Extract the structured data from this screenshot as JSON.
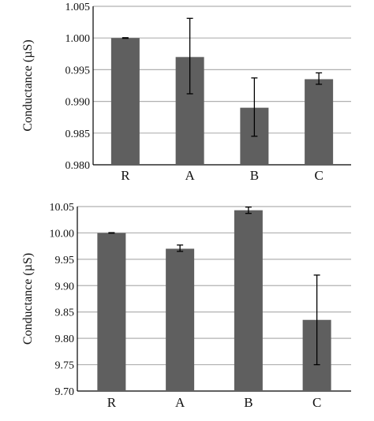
{
  "chart_data": [
    {
      "type": "bar",
      "ylabel": "Conductance (µS)",
      "xlabel": "",
      "categories": [
        "R",
        "A",
        "B",
        "C"
      ],
      "series": [
        {
          "values": [
            1.0,
            0.997,
            0.989,
            0.9935
          ]
        }
      ],
      "error_bars": [
        [
          0.99995,
          1.00005
        ],
        [
          0.9912,
          1.0031
        ],
        [
          0.9845,
          0.9937
        ],
        [
          0.9927,
          0.9945
        ]
      ],
      "ylim": [
        0.98,
        1.005
      ],
      "yticks": [
        "0.980",
        "0.985",
        "0.990",
        "0.995",
        "1.000",
        "1.005"
      ],
      "grid": true,
      "bar_color": "#5f5f5f",
      "grid_color": "#b0b0b0"
    },
    {
      "type": "bar",
      "ylabel": "Conductance (µS)",
      "xlabel": "",
      "categories": [
        "R",
        "A",
        "B",
        "C"
      ],
      "series": [
        {
          "values": [
            10.0,
            9.97,
            10.043,
            9.835
          ]
        }
      ],
      "error_bars": [
        [
          9.9995,
          10.0005
        ],
        [
          9.965,
          9.977
        ],
        [
          10.037,
          10.049
        ],
        [
          9.75,
          9.92
        ]
      ],
      "ylim": [
        9.7,
        10.05
      ],
      "yticks": [
        "9.70",
        "9.75",
        "9.80",
        "9.85",
        "9.90",
        "9.95",
        "10.00",
        "10.05"
      ],
      "grid": true,
      "bar_color": "#5f5f5f",
      "grid_color": "#b0b0b0"
    }
  ]
}
